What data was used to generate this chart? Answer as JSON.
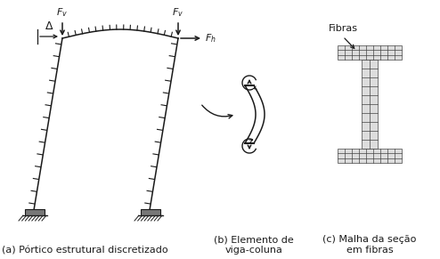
{
  "bg_color": "#ffffff",
  "line_color": "#1a1a1a",
  "fig_width": 4.94,
  "fig_height": 2.91,
  "caption_a": "(a) Pórtico estrutural discretizado",
  "caption_b": "(b) Elemento de\nviga-coluna",
  "caption_c": "(c) Malha da seção\nem fibras",
  "label_fibras": "Fibras"
}
